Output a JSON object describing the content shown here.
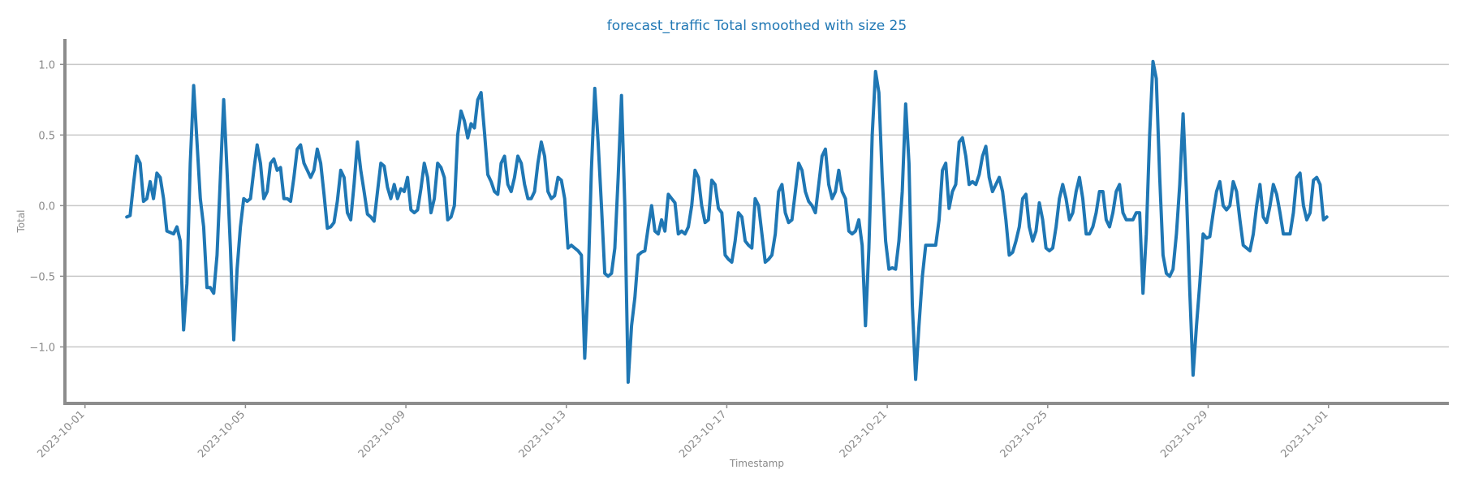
{
  "chart_data": {
    "type": "line",
    "title": "forecast_traffic Total smoothed with size 25",
    "xlabel": "Timestamp",
    "ylabel": "Total",
    "x_range": [
      "2023-09-30T12:00",
      "2023-11-04T00:00"
    ],
    "ylim": [
      -1.4,
      1.18
    ],
    "x_ticks": [
      "2023-10-01",
      "2023-10-05",
      "2023-10-09",
      "2023-10-13",
      "2023-10-17",
      "2023-10-21",
      "2023-10-25",
      "2023-10-29",
      "2023-11-01"
    ],
    "y_ticks": [
      {
        "value": 1.0,
        "label": "1.0"
      },
      {
        "value": 0.5,
        "label": "0.5"
      },
      {
        "value": 0.0,
        "label": "0.0"
      },
      {
        "value": -0.5,
        "label": "−0.5"
      },
      {
        "value": -1.0,
        "label": "−1.0"
      }
    ],
    "grid": "horizontal",
    "series": [
      {
        "color": "#1f77b4",
        "x": [
          "2023-10-02T01:00",
          "2023-10-02T03:00",
          "2023-10-02T05:00",
          "2023-10-02T07:00",
          "2023-10-02T09:00",
          "2023-10-02T11:00",
          "2023-10-02T13:00",
          "2023-10-02T15:00",
          "2023-10-02T17:00",
          "2023-10-02T19:00",
          "2023-10-02T21:00",
          "2023-10-02T23:00",
          "2023-10-03T01:00",
          "2023-10-03T03:00",
          "2023-10-03T05:00",
          "2023-10-03T07:00",
          "2023-10-03T09:00",
          "2023-10-03T11:00",
          "2023-10-03T13:00",
          "2023-10-03T15:00",
          "2023-10-03T17:00",
          "2023-10-03T19:00",
          "2023-10-03T21:00",
          "2023-10-03T23:00",
          "2023-10-04T01:00",
          "2023-10-04T03:00",
          "2023-10-04T05:00",
          "2023-10-04T07:00",
          "2023-10-04T09:00",
          "2023-10-04T11:00",
          "2023-10-04T13:00",
          "2023-10-04T15:00",
          "2023-10-04T17:00",
          "2023-10-04T19:00",
          "2023-10-04T21:00",
          "2023-10-04T23:00",
          "2023-10-05T01:00",
          "2023-10-05T03:00",
          "2023-10-05T05:00",
          "2023-10-05T07:00",
          "2023-10-05T09:00",
          "2023-10-05T11:00",
          "2023-10-05T13:00",
          "2023-10-05T15:00",
          "2023-10-05T17:00",
          "2023-10-05T19:00",
          "2023-10-05T21:00",
          "2023-10-05T23:00",
          "2023-10-06T01:00",
          "2023-10-06T03:00",
          "2023-10-06T05:00",
          "2023-10-06T07:00",
          "2023-10-06T09:00",
          "2023-10-06T11:00",
          "2023-10-06T13:00",
          "2023-10-06T15:00",
          "2023-10-06T17:00",
          "2023-10-06T19:00",
          "2023-10-06T21:00",
          "2023-10-06T23:00",
          "2023-10-07T01:00",
          "2023-10-07T03:00",
          "2023-10-07T05:00",
          "2023-10-07T07:00",
          "2023-10-07T09:00",
          "2023-10-07T11:00",
          "2023-10-07T13:00",
          "2023-10-07T15:00",
          "2023-10-07T17:00",
          "2023-10-07T19:00",
          "2023-10-07T21:00",
          "2023-10-07T23:00",
          "2023-10-08T01:00",
          "2023-10-08T03:00",
          "2023-10-08T05:00",
          "2023-10-08T07:00",
          "2023-10-08T09:00",
          "2023-10-08T11:00",
          "2023-10-08T13:00",
          "2023-10-08T15:00",
          "2023-10-08T17:00",
          "2023-10-08T19:00",
          "2023-10-08T21:00",
          "2023-10-08T23:00",
          "2023-10-09T01:00",
          "2023-10-09T03:00",
          "2023-10-09T05:00",
          "2023-10-09T07:00",
          "2023-10-09T09:00",
          "2023-10-09T11:00",
          "2023-10-09T13:00",
          "2023-10-09T15:00",
          "2023-10-09T17:00",
          "2023-10-09T19:00",
          "2023-10-09T21:00",
          "2023-10-09T23:00",
          "2023-10-10T01:00",
          "2023-10-10T03:00",
          "2023-10-10T05:00",
          "2023-10-10T07:00",
          "2023-10-10T09:00",
          "2023-10-10T11:00",
          "2023-10-10T13:00",
          "2023-10-10T15:00",
          "2023-10-10T17:00",
          "2023-10-10T19:00",
          "2023-10-10T21:00",
          "2023-10-10T23:00",
          "2023-10-11T01:00",
          "2023-10-11T03:00",
          "2023-10-11T05:00",
          "2023-10-11T07:00",
          "2023-10-11T09:00",
          "2023-10-11T11:00",
          "2023-10-11T13:00",
          "2023-10-11T15:00",
          "2023-10-11T17:00",
          "2023-10-11T19:00",
          "2023-10-11T21:00",
          "2023-10-11T23:00",
          "2023-10-12T01:00",
          "2023-10-12T03:00",
          "2023-10-12T05:00",
          "2023-10-12T07:00",
          "2023-10-12T09:00",
          "2023-10-12T11:00",
          "2023-10-12T13:00",
          "2023-10-12T15:00",
          "2023-10-12T17:00",
          "2023-10-12T19:00",
          "2023-10-12T21:00",
          "2023-10-12T23:00",
          "2023-10-13T01:00",
          "2023-10-13T03:00",
          "2023-10-13T05:00",
          "2023-10-13T07:00",
          "2023-10-13T09:00",
          "2023-10-13T11:00",
          "2023-10-13T13:00",
          "2023-10-13T15:00",
          "2023-10-13T17:00",
          "2023-10-13T19:00",
          "2023-10-13T21:00",
          "2023-10-13T23:00",
          "2023-10-14T01:00",
          "2023-10-14T03:00",
          "2023-10-14T05:00",
          "2023-10-14T07:00",
          "2023-10-14T09:00",
          "2023-10-14T11:00",
          "2023-10-14T13:00",
          "2023-10-14T15:00",
          "2023-10-14T17:00",
          "2023-10-14T19:00",
          "2023-10-14T21:00",
          "2023-10-14T23:00",
          "2023-10-15T01:00",
          "2023-10-15T03:00",
          "2023-10-15T05:00",
          "2023-10-15T07:00",
          "2023-10-15T09:00",
          "2023-10-15T11:00",
          "2023-10-15T13:00",
          "2023-10-15T15:00",
          "2023-10-15T17:00",
          "2023-10-15T19:00",
          "2023-10-15T21:00",
          "2023-10-15T23:00",
          "2023-10-16T01:00",
          "2023-10-16T03:00",
          "2023-10-16T05:00",
          "2023-10-16T07:00",
          "2023-10-16T09:00",
          "2023-10-16T11:00",
          "2023-10-16T13:00",
          "2023-10-16T15:00",
          "2023-10-16T17:00",
          "2023-10-16T19:00",
          "2023-10-16T21:00",
          "2023-10-16T23:00",
          "2023-10-17T01:00",
          "2023-10-17T03:00",
          "2023-10-17T05:00",
          "2023-10-17T07:00",
          "2023-10-17T09:00",
          "2023-10-17T11:00",
          "2023-10-17T13:00",
          "2023-10-17T15:00",
          "2023-10-17T17:00",
          "2023-10-17T19:00",
          "2023-10-17T21:00",
          "2023-10-17T23:00",
          "2023-10-18T01:00",
          "2023-10-18T03:00",
          "2023-10-18T05:00",
          "2023-10-18T07:00",
          "2023-10-18T09:00",
          "2023-10-18T11:00",
          "2023-10-18T13:00",
          "2023-10-18T15:00",
          "2023-10-18T17:00",
          "2023-10-18T19:00",
          "2023-10-18T21:00",
          "2023-10-18T23:00",
          "2023-10-19T01:00",
          "2023-10-19T03:00",
          "2023-10-19T05:00",
          "2023-10-19T07:00",
          "2023-10-19T09:00",
          "2023-10-19T11:00",
          "2023-10-19T13:00",
          "2023-10-19T15:00",
          "2023-10-19T17:00",
          "2023-10-19T19:00",
          "2023-10-19T21:00",
          "2023-10-19T23:00",
          "2023-10-20T01:00",
          "2023-10-20T03:00",
          "2023-10-20T05:00",
          "2023-10-20T07:00",
          "2023-10-20T09:00",
          "2023-10-20T11:00",
          "2023-10-20T13:00",
          "2023-10-20T15:00",
          "2023-10-20T17:00",
          "2023-10-20T19:00",
          "2023-10-20T21:00",
          "2023-10-20T23:00",
          "2023-10-21T01:00",
          "2023-10-21T03:00",
          "2023-10-21T05:00",
          "2023-10-21T07:00",
          "2023-10-21T09:00",
          "2023-10-21T11:00",
          "2023-10-21T13:00",
          "2023-10-21T15:00",
          "2023-10-21T17:00",
          "2023-10-21T19:00",
          "2023-10-21T21:00",
          "2023-10-21T23:00",
          "2023-10-22T01:00",
          "2023-10-22T03:00",
          "2023-10-22T05:00",
          "2023-10-22T07:00",
          "2023-10-22T09:00",
          "2023-10-22T11:00",
          "2023-10-22T13:00",
          "2023-10-22T15:00",
          "2023-10-22T17:00",
          "2023-10-22T19:00",
          "2023-10-22T21:00",
          "2023-10-22T23:00",
          "2023-10-23T01:00",
          "2023-10-23T03:00",
          "2023-10-23T05:00",
          "2023-10-23T07:00",
          "2023-10-23T09:00",
          "2023-10-23T11:00",
          "2023-10-23T13:00",
          "2023-10-23T15:00",
          "2023-10-23T17:00",
          "2023-10-23T19:00",
          "2023-10-23T21:00",
          "2023-10-23T23:00",
          "2023-10-24T01:00",
          "2023-10-24T03:00",
          "2023-10-24T05:00",
          "2023-10-24T07:00",
          "2023-10-24T09:00",
          "2023-10-24T11:00",
          "2023-10-24T13:00",
          "2023-10-24T15:00",
          "2023-10-24T17:00",
          "2023-10-24T19:00",
          "2023-10-24T21:00",
          "2023-10-24T23:00",
          "2023-10-25T01:00",
          "2023-10-25T03:00",
          "2023-10-25T05:00",
          "2023-10-25T07:00",
          "2023-10-25T09:00",
          "2023-10-25T11:00",
          "2023-10-25T13:00",
          "2023-10-25T15:00",
          "2023-10-25T17:00",
          "2023-10-25T19:00",
          "2023-10-25T21:00",
          "2023-10-25T23:00",
          "2023-10-26T01:00",
          "2023-10-26T03:00",
          "2023-10-26T05:00",
          "2023-10-26T07:00",
          "2023-10-26T09:00",
          "2023-10-26T11:00",
          "2023-10-26T13:00",
          "2023-10-26T15:00",
          "2023-10-26T17:00",
          "2023-10-26T19:00",
          "2023-10-26T21:00",
          "2023-10-26T23:00",
          "2023-10-27T01:00",
          "2023-10-27T03:00",
          "2023-10-27T05:00",
          "2023-10-27T07:00",
          "2023-10-27T09:00",
          "2023-10-27T11:00",
          "2023-10-27T13:00",
          "2023-10-27T15:00",
          "2023-10-27T17:00",
          "2023-10-27T19:00",
          "2023-10-27T21:00",
          "2023-10-27T23:00",
          "2023-10-28T01:00",
          "2023-10-28T03:00",
          "2023-10-28T05:00",
          "2023-10-28T07:00",
          "2023-10-28T09:00",
          "2023-10-28T11:00",
          "2023-10-28T13:00",
          "2023-10-28T15:00",
          "2023-10-28T17:00",
          "2023-10-28T19:00",
          "2023-10-28T21:00",
          "2023-10-28T23:00",
          "2023-10-29T01:00",
          "2023-10-29T03:00",
          "2023-10-29T05:00",
          "2023-10-29T07:00",
          "2023-10-29T09:00",
          "2023-10-29T11:00",
          "2023-10-29T13:00",
          "2023-10-29T15:00",
          "2023-10-29T17:00",
          "2023-10-29T19:00",
          "2023-10-29T21:00",
          "2023-10-29T23:00",
          "2023-10-30T01:00",
          "2023-10-30T03:00",
          "2023-10-30T05:00",
          "2023-10-30T07:00",
          "2023-10-30T09:00",
          "2023-10-30T11:00",
          "2023-10-30T13:00",
          "2023-10-30T15:00",
          "2023-10-30T17:00",
          "2023-10-30T19:00",
          "2023-10-30T21:00",
          "2023-10-30T23:00",
          "2023-10-31T01:00",
          "2023-10-31T03:00",
          "2023-10-31T05:00",
          "2023-10-31T07:00",
          "2023-10-31T09:00",
          "2023-10-31T11:00",
          "2023-10-31T13:00",
          "2023-10-31T15:00",
          "2023-10-31T17:00",
          "2023-10-31T19:00",
          "2023-10-31T21:00",
          "2023-10-31T23:00"
        ],
        "values": [
          -0.08,
          -0.07,
          0.15,
          0.35,
          0.3,
          0.03,
          0.05,
          0.17,
          0.05,
          0.23,
          0.2,
          0.05,
          -0.18,
          -0.19,
          -0.2,
          -0.15,
          -0.25,
          -0.88,
          -0.55,
          0.3,
          0.85,
          0.45,
          0.05,
          -0.15,
          -0.58,
          -0.58,
          -0.62,
          -0.35,
          0.2,
          0.75,
          0.25,
          -0.3,
          -0.95,
          -0.45,
          -0.15,
          0.05,
          0.03,
          0.05,
          0.25,
          0.43,
          0.3,
          0.05,
          0.1,
          0.3,
          0.33,
          0.25,
          0.27,
          0.05,
          0.05,
          0.03,
          0.2,
          0.4,
          0.43,
          0.3,
          0.25,
          0.2,
          0.25,
          0.4,
          0.3,
          0.08,
          -0.16,
          -0.15,
          -0.12,
          0.03,
          0.25,
          0.2,
          -0.05,
          -0.1,
          0.15,
          0.45,
          0.25,
          0.1,
          -0.06,
          -0.08,
          -0.11,
          0.1,
          0.3,
          0.28,
          0.13,
          0.05,
          0.15,
          0.05,
          0.12,
          0.1,
          0.2,
          -0.03,
          -0.05,
          -0.03,
          0.12,
          0.3,
          0.2,
          -0.05,
          0.05,
          0.3,
          0.27,
          0.2,
          -0.1,
          -0.08,
          0.0,
          0.5,
          0.67,
          0.6,
          0.48,
          0.58,
          0.55,
          0.75,
          0.8,
          0.52,
          0.22,
          0.17,
          0.1,
          0.08,
          0.3,
          0.35,
          0.15,
          0.1,
          0.2,
          0.35,
          0.3,
          0.15,
          0.05,
          0.05,
          0.1,
          0.3,
          0.45,
          0.35,
          0.1,
          0.05,
          0.07,
          0.2,
          0.18,
          0.05,
          -0.3,
          -0.28,
          -0.3,
          -0.32,
          -0.35,
          -1.08,
          -0.55,
          0.25,
          0.83,
          0.45,
          0.0,
          -0.48,
          -0.5,
          -0.48,
          -0.3,
          0.2,
          0.78,
          0.0,
          -1.25,
          -0.85,
          -0.65,
          -0.35,
          -0.33,
          -0.32,
          -0.15,
          0.0,
          -0.18,
          -0.2,
          -0.1,
          -0.18,
          0.08,
          0.05,
          0.02,
          -0.2,
          -0.18,
          -0.2,
          -0.15,
          0.0,
          0.25,
          0.2,
          0.0,
          -0.12,
          -0.1,
          0.18,
          0.15,
          -0.02,
          -0.05,
          -0.35,
          -0.38,
          -0.4,
          -0.25,
          -0.05,
          -0.08,
          -0.25,
          -0.28,
          -0.3,
          0.05,
          0.0,
          -0.2,
          -0.4,
          -0.38,
          -0.35,
          -0.2,
          0.1,
          0.15,
          -0.05,
          -0.12,
          -0.1,
          0.1,
          0.3,
          0.25,
          0.1,
          0.03,
          0.0,
          -0.05,
          0.15,
          0.35,
          0.4,
          0.15,
          0.05,
          0.1,
          0.25,
          0.1,
          0.05,
          -0.18,
          -0.2,
          -0.18,
          -0.1,
          -0.28,
          -0.85,
          -0.3,
          0.5,
          0.95,
          0.8,
          0.2,
          -0.25,
          -0.45,
          -0.44,
          -0.45,
          -0.25,
          0.1,
          0.72,
          0.3,
          -0.7,
          -1.23,
          -0.85,
          -0.5,
          -0.28,
          -0.28,
          -0.28,
          -0.28,
          -0.1,
          0.25,
          0.3,
          -0.02,
          0.1,
          0.15,
          0.45,
          0.48,
          0.35,
          0.15,
          0.17,
          0.15,
          0.22,
          0.35,
          0.42,
          0.2,
          0.1,
          0.15,
          0.2,
          0.1,
          -0.1,
          -0.35,
          -0.33,
          -0.25,
          -0.15,
          0.05,
          0.08,
          -0.15,
          -0.25,
          -0.18,
          0.02,
          -0.1,
          -0.3,
          -0.32,
          -0.3,
          -0.15,
          0.05,
          0.15,
          0.05,
          -0.1,
          -0.05,
          0.1,
          0.2,
          0.05,
          -0.2,
          -0.2,
          -0.15,
          -0.05,
          0.1,
          0.1,
          -0.1,
          -0.15,
          -0.05,
          0.1,
          0.15,
          -0.05,
          -0.1,
          -0.1,
          -0.1,
          -0.05,
          -0.05,
          -0.62,
          -0.2,
          0.5,
          1.02,
          0.9,
          0.2,
          -0.35,
          -0.48,
          -0.5,
          -0.45,
          -0.2,
          0.15,
          0.65,
          0.1,
          -0.6,
          -1.2,
          -0.85,
          -0.55,
          -0.2,
          -0.23,
          -0.22,
          -0.05,
          0.1,
          0.17,
          0.0,
          -0.03,
          0.0,
          0.17,
          0.1,
          -0.1,
          -0.28,
          -0.3,
          -0.32,
          -0.2,
          0.0,
          0.15,
          -0.08,
          -0.12,
          0.0,
          0.15,
          0.08,
          -0.05,
          -0.2,
          -0.2,
          -0.2,
          -0.05,
          0.2,
          0.23,
          0.0,
          -0.1,
          -0.05,
          0.18,
          0.2,
          0.15,
          -0.1,
          -0.08
        ]
      }
    ]
  }
}
